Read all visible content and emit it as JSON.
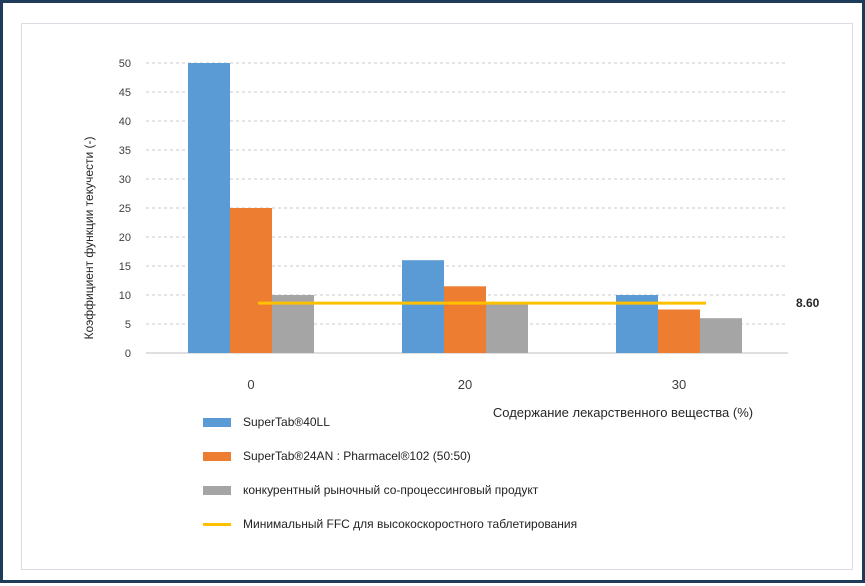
{
  "chart_data": {
    "type": "bar",
    "ylabel": "Коэффициент функции текучести (-)",
    "xlabel": "Содержание лекарственного вещества (%)",
    "categories": [
      "0",
      "20",
      "30"
    ],
    "ylim": [
      0,
      50
    ],
    "yticks": [
      "0",
      "5",
      "10",
      "15",
      "20",
      "25",
      "30",
      "35",
      "40",
      "45",
      "50"
    ],
    "grid": true,
    "legend_position": "bottom",
    "series": [
      {
        "name": "SuperTab®40LL",
        "color": "#5b9bd5",
        "values": [
          50,
          16,
          10
        ]
      },
      {
        "name": "SuperTab®24AN : Pharmacel®102 (50:50)",
        "color": "#ed7d31",
        "values": [
          25,
          11.5,
          7.5
        ]
      },
      {
        "name": "конкурентный рыночный со-процессинговый продукт",
        "color": "#a5a5a5",
        "values": [
          10,
          8.5,
          6
        ]
      }
    ],
    "reference_line": {
      "name": "Минимальный FFC для высокоскоростного таблетирования",
      "value": 8.6,
      "label": "8.60",
      "color": "#ffc000"
    }
  }
}
